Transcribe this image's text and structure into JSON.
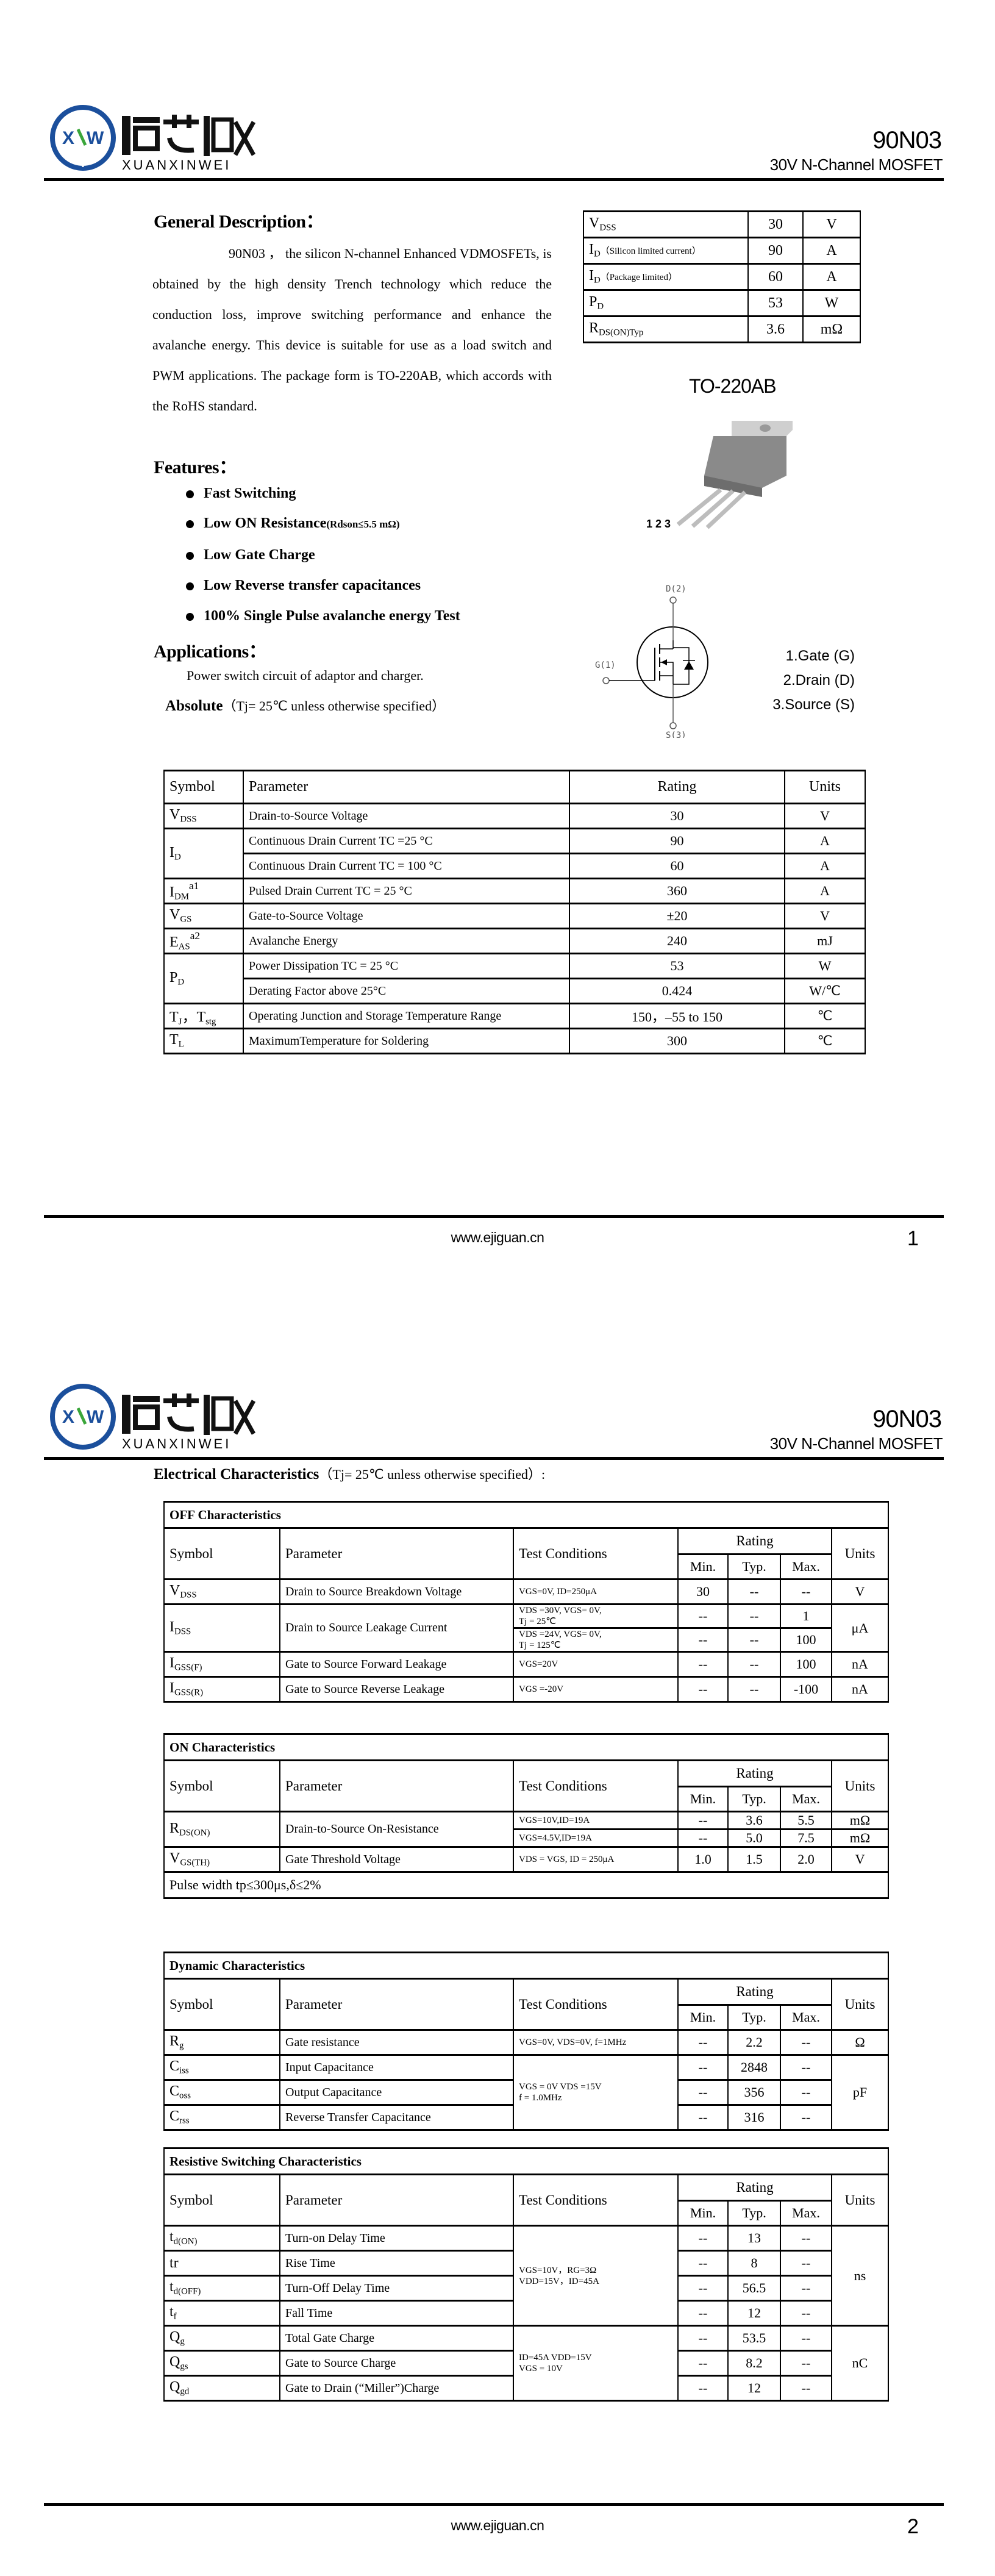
{
  "logo": {
    "cn_text": "烜芯微",
    "en_text": "XUANXINWEI",
    "mark": "XXW",
    "ring_color": "#1b4f9c",
    "accent_color": "#3aa63a"
  },
  "header": {
    "part_number": "90N03",
    "subtitle": "30V N-Channel MOSFET"
  },
  "footer": {
    "url": "www.ejiguan.cn",
    "page1": "1",
    "page2": "2"
  },
  "general": {
    "heading": "General Description：",
    "text": "90N03 ， the silicon N-channel Enhanced VDMOSFETs, is obtained by the high density Trench technology which reduce the conduction loss, improve switching performance and enhance the avalanche energy. This device is suitable for use as a load switch and PWM applications. The package form is TO-220AB, which accords with the RoHS standard."
  },
  "summary_table": [
    {
      "sym": [
        "V",
        "DSS"
      ],
      "note": "",
      "value": "30",
      "unit": "V"
    },
    {
      "sym": [
        "I",
        "D"
      ],
      "note": "（Silicon limited current）",
      "value": "90",
      "unit": "A"
    },
    {
      "sym": [
        "I",
        "D"
      ],
      "note": "（Package limited）",
      "value": "60",
      "unit": "A"
    },
    {
      "sym": [
        "P",
        "D"
      ],
      "note": "",
      "value": "53",
      "unit": "W"
    },
    {
      "sym": [
        "R",
        "DS(ON)Typ"
      ],
      "note": "",
      "value": "3.6",
      "unit": "mΩ"
    }
  ],
  "package": {
    "name": "TO-220AB",
    "pins_label": "1 2 3"
  },
  "schematic": {
    "drain": "D(2)",
    "gate": "G(1)",
    "source": "S(3)"
  },
  "pins": [
    "1.Gate (G)",
    "2.Drain (D)",
    "3.Source (S)"
  ],
  "features": {
    "heading": "Features：",
    "items": [
      "Fast Switching",
      "Low ON Resistance",
      "Low Gate Charge",
      "Low Reverse transfer capacitances",
      "100% Single Pulse avalanche energy Test"
    ],
    "item2_note": "(Rdson≤5.5 mΩ)"
  },
  "applications": {
    "heading": "Applications：",
    "text": "Power switch circuit of adaptor and charger."
  },
  "absolute": {
    "label": "Absolute",
    "note": "（Tj= 25℃  unless otherwise specified）"
  },
  "abs_table": {
    "headers": [
      "Symbol",
      "Parameter",
      "Rating",
      "Units"
    ],
    "rows": [
      {
        "sym": [
          "V",
          "DSS"
        ],
        "sup": "",
        "param": "Drain-to-Source Voltage",
        "rating": "30",
        "unit": "V"
      },
      {
        "sym": [
          "I",
          "D"
        ],
        "sup": "",
        "param": "Continuous Drain Current TC =25 °C",
        "rating": "90",
        "unit": "A"
      },
      {
        "sym": null,
        "param": "Continuous Drain Current TC = 100 °C",
        "rating": "60",
        "unit": "A"
      },
      {
        "sym": [
          "I",
          "DM"
        ],
        "sup": "a1",
        "param": "Pulsed Drain Current TC = 25 °C",
        "rating": "360",
        "unit": "A"
      },
      {
        "sym": [
          "V",
          "GS"
        ],
        "sup": "",
        "param": "Gate-to-Source Voltage",
        "rating": "±20",
        "unit": "V"
      },
      {
        "sym": [
          "E",
          "AS"
        ],
        "sup": "a2",
        "param": "Avalanche Energy",
        "rating": "240",
        "unit": "mJ"
      },
      {
        "sym": [
          "P",
          "D"
        ],
        "sup": "",
        "param": "Power Dissipation TC = 25 °C",
        "rating": "53",
        "unit": "W"
      },
      {
        "sym": null,
        "param": "Derating Factor above 25°C",
        "rating": "0.424",
        "unit": "W/℃"
      },
      {
        "sym": [
          "T",
          "J",
          "，T",
          "stg"
        ],
        "sup": "",
        "param": "Operating Junction and Storage Temperature Range",
        "rating": "150，–55 to 150",
        "unit": "℃"
      },
      {
        "sym": [
          "T",
          "L"
        ],
        "sup": "",
        "param": "MaximumTemperature for Soldering",
        "rating": "300",
        "unit": "℃"
      }
    ]
  },
  "electrical": {
    "heading": "Electrical Characteristics",
    "note": "（Tj= 25℃ unless otherwise specified）:",
    "headers": {
      "symbol": "Symbol",
      "parameter": "Parameter",
      "conditions": "Test Conditions",
      "rating": "Rating",
      "min": "Min.",
      "typ": "Typ.",
      "max": "Max.",
      "units": "Units"
    },
    "tables": [
      {
        "title": "OFF Characteristics",
        "footnote": null,
        "rows": [
          {
            "sym": [
              "V",
              "DSS"
            ],
            "param": "Drain to Source Breakdown Voltage",
            "cond": [
              "VGS=0V, ID=250μA"
            ],
            "min": "30",
            "typ": "--",
            "max": "--",
            "unit": "V"
          },
          {
            "sym": [
              "I",
              "DSS"
            ],
            "param": "Drain to Source Leakage Current",
            "cond": [
              "VDS =30V, VGS= 0V,",
              "Tj = 25℃"
            ],
            "min": "--",
            "typ": "--",
            "max": "1",
            "unit": "μA"
          },
          {
            "sym": null,
            "param": null,
            "cond": [
              "VDS =24V, VGS= 0V,",
              "Tj = 125℃"
            ],
            "min": "--",
            "typ": "--",
            "max": "100",
            "unit": null
          },
          {
            "sym": [
              "I",
              "GSS(F)"
            ],
            "param": "Gate to Source Forward Leakage",
            "cond": [
              "VGS=20V"
            ],
            "min": "--",
            "typ": "--",
            "max": "100",
            "unit": "nA"
          },
          {
            "sym": [
              "I",
              "GSS(R)"
            ],
            "param": "Gate to Source Reverse Leakage",
            "cond": [
              "VGS =-20V"
            ],
            "min": "--",
            "typ": "--",
            "max": "-100",
            "unit": "nA"
          }
        ]
      },
      {
        "title": "ON Characteristics",
        "footnote": "Pulse width tp≤300μs,δ≤2%",
        "rows": [
          {
            "sym": [
              "R",
              "DS(ON)"
            ],
            "param": "Drain-to-Source On-Resistance",
            "cond": [
              "VGS=10V,ID=19A"
            ],
            "min": "--",
            "typ": "3.6",
            "max": "5.5",
            "unit": "mΩ"
          },
          {
            "sym": null,
            "param": null,
            "cond": [
              "VGS=4.5V,ID=19A"
            ],
            "min": "--",
            "typ": "5.0",
            "max": "7.5",
            "unit": "mΩ"
          },
          {
            "sym": [
              "V",
              "GS(TH)"
            ],
            "param": "Gate Threshold Voltage",
            "cond": [
              "VDS = VGS, ID = 250μA"
            ],
            "min": "1.0",
            "typ": "1.5",
            "max": "2.0",
            "unit": "V"
          }
        ]
      },
      {
        "title": "Dynamic Characteristics",
        "footnote": null,
        "rows": [
          {
            "sym": [
              "R",
              "g"
            ],
            "param": "Gate resistance",
            "cond": [
              "VGS=0V, VDS=0V, f=1MHz"
            ],
            "min": "--",
            "typ": "2.2",
            "max": "--",
            "unit": "Ω"
          },
          {
            "sym": [
              "C",
              "iss"
            ],
            "param": "Input Capacitance",
            "cond": [
              "VGS = 0V VDS =15V",
              "f = 1.0MHz"
            ],
            "min": "--",
            "typ": "2848",
            "max": "--",
            "unit": "pF"
          },
          {
            "sym": [
              "C",
              "oss"
            ],
            "param": "Output Capacitance",
            "cond": null,
            "min": "--",
            "typ": "356",
            "max": "--",
            "unit": null
          },
          {
            "sym": [
              "C",
              "rss"
            ],
            "param": "Reverse Transfer Capacitance",
            "cond": null,
            "min": "--",
            "typ": "316",
            "max": "--",
            "unit": null
          }
        ]
      },
      {
        "title": "Resistive Switching Characteristics",
        "footnote": null,
        "rows": [
          {
            "sym": [
              "t",
              "d(ON)"
            ],
            "param": "Turn-on Delay Time",
            "cond": [
              "VGS=10V，RG=3Ω",
              "VDD=15V，ID=45A"
            ],
            "min": "--",
            "typ": "13",
            "max": "--",
            "unit": "ns"
          },
          {
            "sym": [
              "tr"
            ],
            "param": "Rise Time",
            "cond": null,
            "min": "--",
            "typ": "8",
            "max": "--",
            "unit": null
          },
          {
            "sym": [
              "t",
              "d(OFF)"
            ],
            "param": "Turn-Off Delay Time",
            "cond": null,
            "min": "--",
            "typ": "56.5",
            "max": "--",
            "unit": null
          },
          {
            "sym": [
              "t",
              "f"
            ],
            "param": "Fall Time",
            "cond": null,
            "min": "--",
            "typ": "12",
            "max": "--",
            "unit": null
          },
          {
            "sym": [
              "Q",
              "g"
            ],
            "param": "Total Gate Charge",
            "cond": [
              "ID=45A    VDD=15V",
              "VGS = 10V"
            ],
            "min": "--",
            "typ": "53.5",
            "max": "--",
            "unit": "nC"
          },
          {
            "sym": [
              "Q",
              "gs"
            ],
            "param": "Gate to Source Charge",
            "cond": null,
            "min": "--",
            "typ": "8.2",
            "max": "--",
            "unit": null
          },
          {
            "sym": [
              "Q",
              "gd"
            ],
            "param": "Gate to Drain (“Miller”)Charge",
            "cond": null,
            "min": "--",
            "typ": "12",
            "max": "--",
            "unit": null
          }
        ]
      }
    ]
  }
}
